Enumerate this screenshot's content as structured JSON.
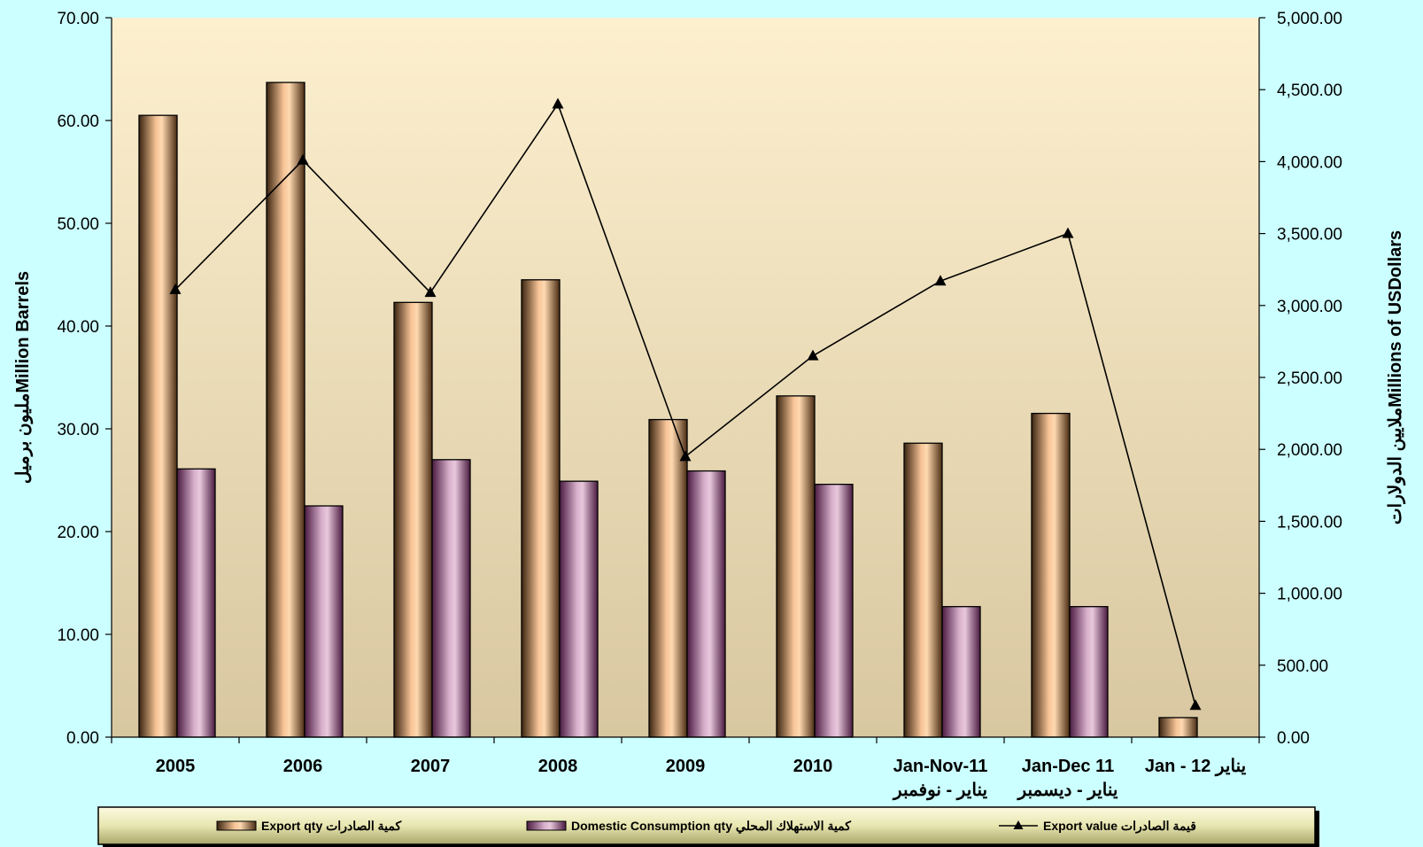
{
  "chart_data": {
    "type": "bar",
    "categories": [
      {
        "line1": "2005",
        "line2": ""
      },
      {
        "line1": "2006",
        "line2": ""
      },
      {
        "line1": "2007",
        "line2": ""
      },
      {
        "line1": "2008",
        "line2": ""
      },
      {
        "line1": "2009",
        "line2": ""
      },
      {
        "line1": "2010",
        "line2": ""
      },
      {
        "line1": "Jan-Nov-11",
        "line2": "يناير - نوفمبر"
      },
      {
        "line1": "Jan-Dec 11",
        "line2": "يناير - ديسمبر"
      },
      {
        "line1": "Jan - 12 يناير",
        "line2": ""
      }
    ],
    "series": [
      {
        "name": "Export qty كمية الصادرات",
        "type": "bar",
        "axis": "left",
        "color": "#f5b98a",
        "values": [
          60.5,
          63.7,
          42.3,
          44.5,
          30.9,
          33.2,
          28.6,
          31.5,
          1.9
        ]
      },
      {
        "name": "Domestic Consumption qty كمية الاستهلاك المحلي",
        "type": "bar",
        "axis": "left",
        "color": "#c9a0c0",
        "values": [
          26.1,
          22.5,
          27.0,
          24.9,
          25.9,
          24.6,
          12.7,
          12.7,
          null
        ]
      },
      {
        "name": "Export value قيمة الصادرات",
        "type": "line",
        "axis": "right",
        "color": "#000000",
        "marker": "triangle",
        "values": [
          3110,
          4010,
          3090,
          4400,
          1950,
          2650,
          3170,
          3500,
          220
        ]
      }
    ],
    "y_left": {
      "label": "مليون برميلMillion Barrels",
      "range": [
        0,
        70
      ],
      "ticks": [
        "0.00",
        "10.00",
        "20.00",
        "30.00",
        "40.00",
        "50.00",
        "60.00",
        "70.00"
      ]
    },
    "y_right": {
      "label": "ملايين الدولاراتMillions of USDollars",
      "range": [
        0,
        5000
      ],
      "ticks": [
        "0.00",
        "500.00",
        "1,000.00",
        "1,500.00",
        "2,000.00",
        "2,500.00",
        "3,000.00",
        "3,500.00",
        "4,000.00",
        "4,500.00",
        "5,000.00"
      ]
    },
    "legend_position": "bottom",
    "grid": false,
    "colors": {
      "page_background": "#ccffff",
      "plot_gradient_top": "#fdf0cf",
      "plot_gradient_bottom": "#d8c7a0",
      "legend_background": "#e8e6b0"
    }
  }
}
